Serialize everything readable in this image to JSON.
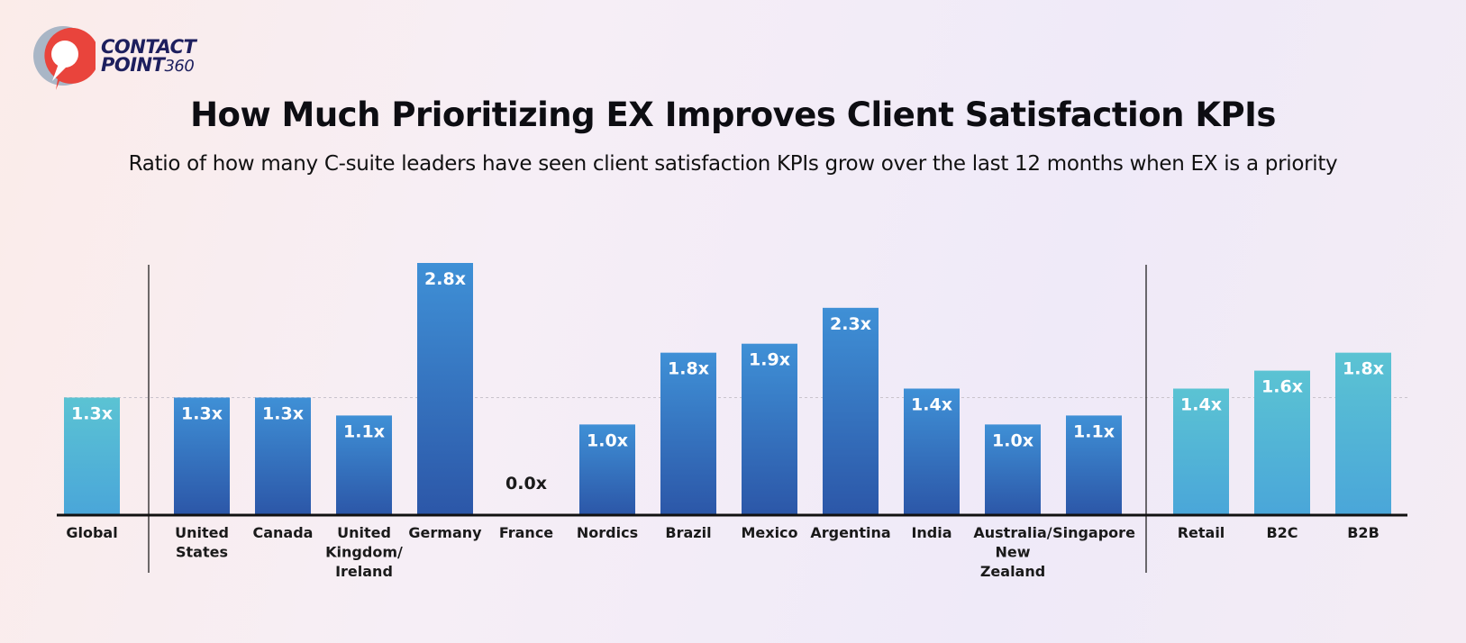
{
  "logo": {
    "line1": "CONTACT",
    "line2": "POINT",
    "line2_suffix": "360"
  },
  "colors": {
    "teal": "#5bc3d3",
    "blue_top": "#3f90d6",
    "blue_bottom": "#2c57a8",
    "axis": "#111111",
    "reference_line": "#c9c3cc"
  },
  "chart_data": {
    "type": "bar",
    "title": "How Much Prioritizing EX Improves Client Satisfaction KPIs",
    "subtitle": "Ratio of how many C-suite leaders have seen client satisfaction KPIs grow over the last 12 months when EX is a priority",
    "xlabel": "",
    "ylabel": "",
    "ylim": [
      0,
      2.8
    ],
    "grid": false,
    "reference_line": 1.3,
    "groups": [
      {
        "name": "",
        "categories": [
          [
            "Global"
          ]
        ],
        "values": [
          1.3
        ],
        "labels": [
          "1.3x"
        ],
        "color": "teal"
      },
      {
        "name": "",
        "categories": [
          [
            "United",
            "States"
          ],
          [
            "Canada"
          ],
          [
            "United",
            "Kingdom/",
            "Ireland"
          ],
          [
            "Germany"
          ],
          [
            "France"
          ],
          [
            "Nordics"
          ],
          [
            "Brazil"
          ],
          [
            "Mexico"
          ],
          [
            "Argentina"
          ],
          [
            "India"
          ],
          [
            "Australia/",
            "New",
            "Zealand"
          ],
          [
            "Singapore"
          ]
        ],
        "values": [
          1.3,
          1.3,
          1.1,
          2.8,
          0.0,
          1.0,
          1.8,
          1.9,
          2.3,
          1.4,
          1.0,
          1.1
        ],
        "labels": [
          "1.3x",
          "1.3x",
          "1.1x",
          "2.8x",
          "0.0x",
          "1.0x",
          "1.8x",
          "1.9x",
          "2.3x",
          "1.4x",
          "1.0x",
          "1.1x"
        ],
        "color": "blue"
      },
      {
        "name": "",
        "categories": [
          [
            "Retail"
          ],
          [
            "B2C"
          ],
          [
            "B2B"
          ]
        ],
        "values": [
          1.4,
          1.6,
          1.8
        ],
        "labels": [
          "1.4x",
          "1.6x",
          "1.8x"
        ],
        "color": "teal"
      }
    ]
  }
}
